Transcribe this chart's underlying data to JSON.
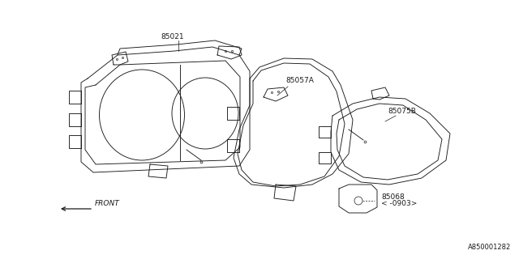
{
  "background_color": "#ffffff",
  "line_color": "#1a1a1a",
  "text_color": "#1a1a1a",
  "labels": {
    "part1": "85021",
    "part2": "85057A",
    "part3": "85075B",
    "part4": "85068",
    "part4_sub": "< -0903>",
    "front": "FRONT",
    "diagram_id": "A850001282"
  },
  "figsize": [
    6.4,
    3.2
  ],
  "dpi": 100
}
